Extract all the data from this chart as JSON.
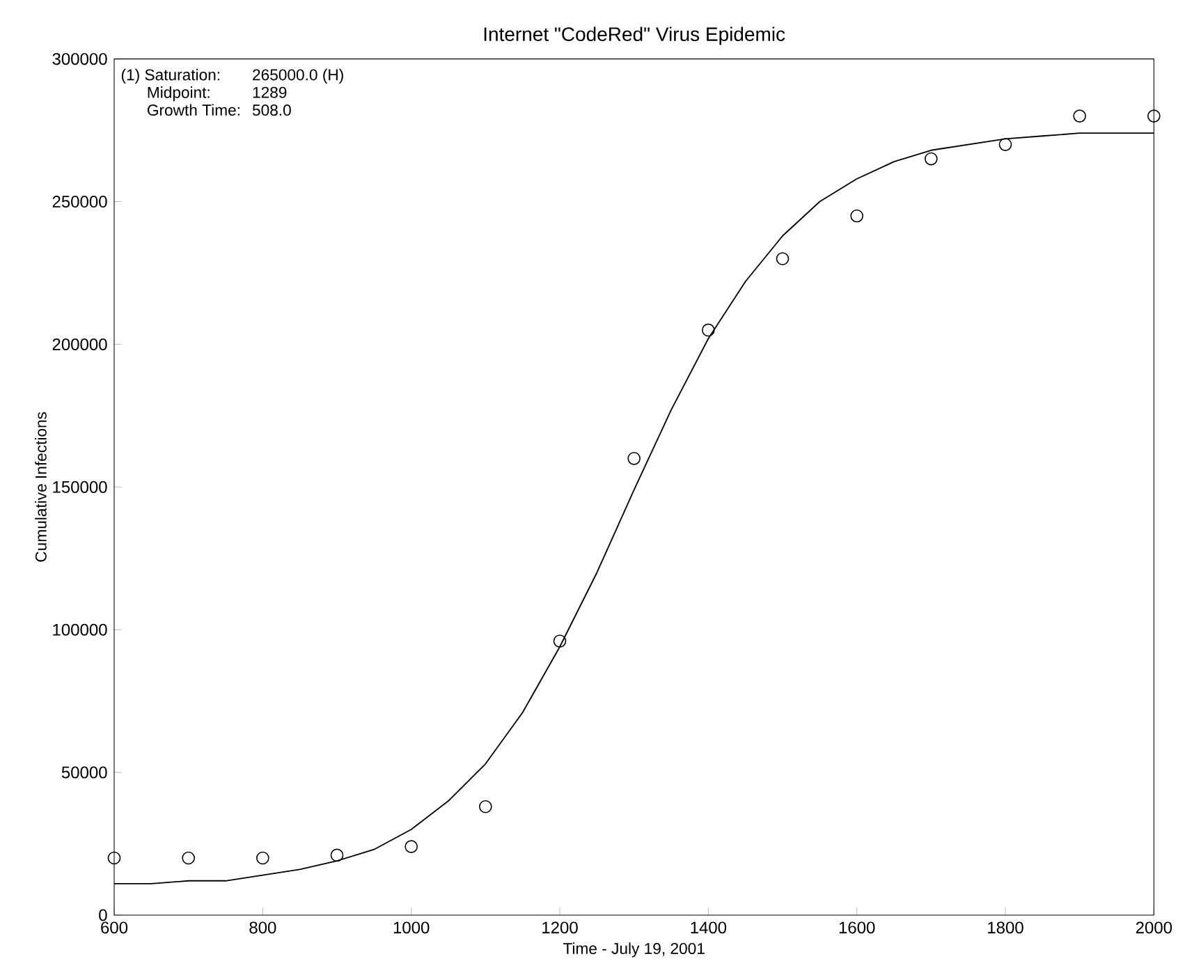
{
  "chart_data": {
    "type": "scatter",
    "title": "Internet \"CodeRed\" Virus Epidemic",
    "xlabel": "Time - July 19, 2001",
    "ylabel": "Cumulative Infections",
    "annotations": [
      "(1) Saturation:",
      "265000.0 (H)",
      "Midpoint:",
      "1289",
      "Growth Time:",
      "508.0"
    ],
    "xlim": [
      600,
      2000
    ],
    "ylim": [
      0,
      300000
    ],
    "xticks": [
      600,
      800,
      1000,
      1200,
      1400,
      1600,
      1800,
      2000
    ],
    "yticks": [
      0,
      50000,
      100000,
      150000,
      200000,
      250000,
      300000
    ],
    "grid": false,
    "series": [
      {
        "marker": "circle",
        "color": "#000000",
        "x": [
          600,
          700,
          800,
          900,
          1000,
          1100,
          1200,
          1300,
          1400,
          1500,
          1600,
          1700,
          1800,
          1900,
          2000
        ],
        "values": [
          20000,
          20000,
          20000,
          21000,
          24000,
          38000,
          96000,
          160000,
          205000,
          230000,
          245000,
          265000,
          270000,
          280000,
          280000
        ]
      },
      {
        "type": "line",
        "marker": "none",
        "line_style": "solid",
        "color": "#000000",
        "x": [
          600,
          650,
          700,
          750,
          800,
          850,
          900,
          950,
          1000,
          1050,
          1100,
          1150,
          1200,
          1250,
          1300,
          1350,
          1400,
          1450,
          1500,
          1550,
          1600,
          1650,
          1700,
          1750,
          1800,
          1850,
          1900,
          1950,
          2000
        ],
        "values": [
          11000,
          11000,
          12000,
          12000,
          14000,
          16000,
          19000,
          23000,
          30000,
          40000,
          53000,
          71000,
          94000,
          120000,
          149000,
          177000,
          202000,
          222000,
          238000,
          250000,
          258000,
          264000,
          268000,
          270000,
          272000,
          273000,
          274000,
          274000,
          274000
        ]
      }
    ]
  }
}
